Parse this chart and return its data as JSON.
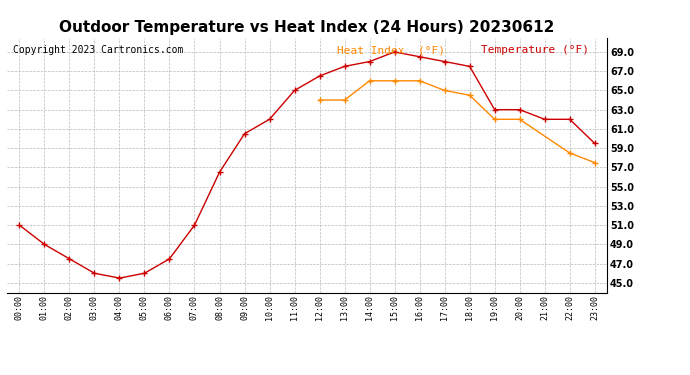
{
  "title": "Outdoor Temperature vs Heat Index (24 Hours) 20230612",
  "copyright": "Copyright 2023 Cartronics.com",
  "legend_heat": "Heat Index  (°F)",
  "legend_temp": "Temperature (°F)",
  "hours": [
    0,
    1,
    2,
    3,
    4,
    5,
    6,
    7,
    8,
    9,
    10,
    11,
    12,
    13,
    14,
    15,
    16,
    17,
    18,
    19,
    20,
    21,
    22,
    23
  ],
  "temperature": [
    51.0,
    49.0,
    47.5,
    46.0,
    45.5,
    46.0,
    47.5,
    51.0,
    56.5,
    60.5,
    62.0,
    65.0,
    66.5,
    67.5,
    68.0,
    69.0,
    68.5,
    68.0,
    67.5,
    63.0,
    63.0,
    62.0,
    62.0,
    59.5
  ],
  "heat_index": [
    null,
    null,
    null,
    null,
    null,
    null,
    null,
    null,
    null,
    null,
    null,
    null,
    64.0,
    64.0,
    66.0,
    66.0,
    66.0,
    65.0,
    64.5,
    62.0,
    62.0,
    null,
    58.5,
    57.5
  ],
  "temp_color": "#cc0000",
  "heat_color": "#ff8800",
  "ylim": [
    44.0,
    70.5
  ],
  "yticks": [
    45.0,
    47.0,
    49.0,
    51.0,
    53.0,
    55.0,
    57.0,
    59.0,
    61.0,
    63.0,
    65.0,
    67.0,
    69.0
  ],
  "bg_color": "#ffffff",
  "grid_color": "#bbbbbb",
  "title_fontsize": 11,
  "copyright_fontsize": 7,
  "legend_fontsize": 8
}
